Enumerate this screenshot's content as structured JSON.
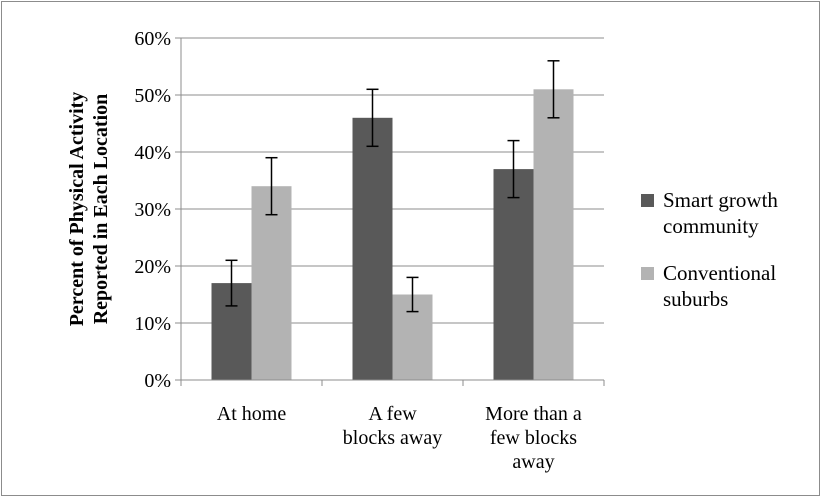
{
  "chart_data": {
    "type": "bar",
    "title": "",
    "xlabel": "",
    "ylabel": [
      "Percent of Physical Activity",
      "Reported in Each Location"
    ],
    "ylim": [
      0,
      0.6
    ],
    "yticks": [
      "0%",
      "10%",
      "20%",
      "30%",
      "40%",
      "50%",
      "60%"
    ],
    "grid": true,
    "legend_position": "right",
    "categories": [
      [
        "At home"
      ],
      [
        "A few",
        "blocks away"
      ],
      [
        "More than a",
        "few blocks",
        "away"
      ]
    ],
    "series": [
      {
        "name": [
          "Smart growth",
          "community"
        ],
        "color": "#595959",
        "values": [
          0.17,
          0.46,
          0.37
        ],
        "error_low": [
          0.13,
          0.41,
          0.32
        ],
        "error_high": [
          0.21,
          0.51,
          0.42
        ]
      },
      {
        "name": [
          "Conventional",
          "suburbs"
        ],
        "color": "#b3b3b3",
        "values": [
          0.34,
          0.15,
          0.51
        ],
        "error_low": [
          0.29,
          0.12,
          0.46
        ],
        "error_high": [
          0.39,
          0.18,
          0.56
        ]
      }
    ]
  }
}
